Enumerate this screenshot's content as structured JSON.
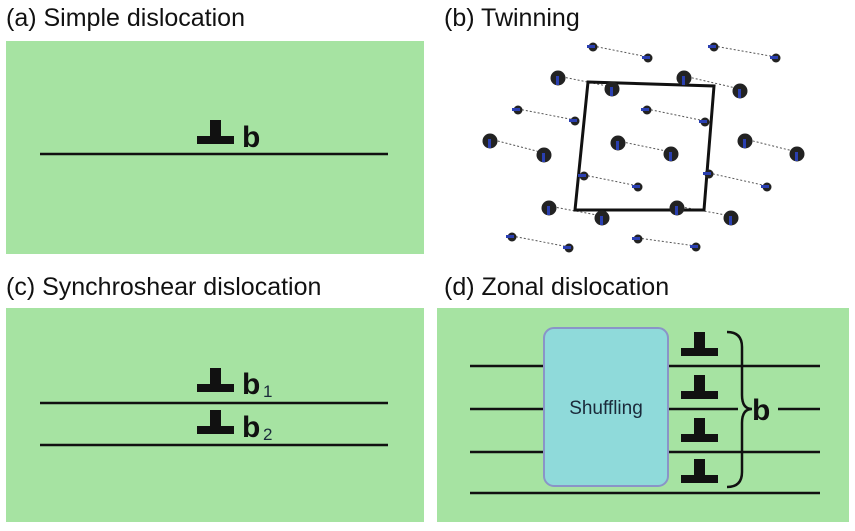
{
  "panels": {
    "a": {
      "title": "(a) Simple dislocation",
      "burgers": "b"
    },
    "b": {
      "title": "(b) Twinning"
    },
    "c": {
      "title": "(c) Synchroshear dislocation",
      "burgers1": "b",
      "sub1": "1",
      "burgers2": "b",
      "sub2": "2"
    },
    "d": {
      "title": "(d) Zonal dislocation",
      "box_label": "Shuffling",
      "burgers": "b"
    }
  },
  "colors": {
    "panel_bg": "#a6e3a2",
    "line": "#111111",
    "box_fill": "#8fdada",
    "box_border": "#8a94c8",
    "atom": "#222222",
    "arrow": "#2a3fb0"
  }
}
